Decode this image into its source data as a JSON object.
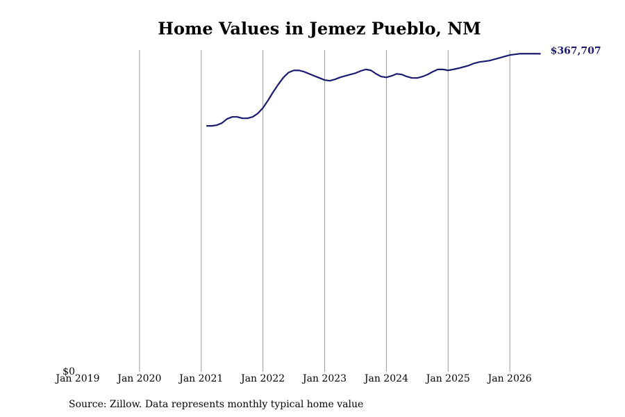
{
  "chart_data": {
    "type": "line",
    "title": "Home Values in Jemez Pueblo, NM",
    "source": "Source: Zillow. Data represents monthly typical home value",
    "x": [
      "2021-02",
      "2021-03",
      "2021-04",
      "2021-05",
      "2021-06",
      "2021-07",
      "2021-08",
      "2021-09",
      "2021-10",
      "2021-11",
      "2021-12",
      "2022-01",
      "2022-02",
      "2022-03",
      "2022-04",
      "2022-05",
      "2022-06",
      "2022-07",
      "2022-08",
      "2022-09",
      "2022-10",
      "2022-11",
      "2022-12",
      "2023-01",
      "2023-02",
      "2023-03",
      "2023-04",
      "2023-05",
      "2023-06",
      "2023-07",
      "2023-08",
      "2023-09",
      "2023-10",
      "2023-11",
      "2023-12",
      "2024-01",
      "2024-02",
      "2024-03",
      "2024-04",
      "2024-05",
      "2024-06",
      "2024-07",
      "2024-08",
      "2024-09",
      "2024-10",
      "2024-11",
      "2024-12",
      "2025-01",
      "2025-02",
      "2025-03",
      "2025-04",
      "2025-05",
      "2025-06",
      "2025-07",
      "2025-08",
      "2025-09",
      "2025-10",
      "2025-11",
      "2025-12",
      "2026-01",
      "2026-02",
      "2026-03",
      "2026-04",
      "2026-05",
      "2026-06",
      "2026-07"
    ],
    "series": [
      {
        "name": "Typical home value",
        "color": "#191970",
        "values": [
          284300,
          284300,
          285100,
          287500,
          292300,
          294700,
          294700,
          293100,
          293100,
          294700,
          298700,
          305100,
          313900,
          323600,
          332400,
          340400,
          346100,
          348500,
          348500,
          346900,
          344500,
          342100,
          339700,
          337300,
          336500,
          338100,
          340400,
          342100,
          343700,
          345300,
          347800,
          349600,
          348500,
          344500,
          341300,
          340400,
          342100,
          344500,
          343700,
          341300,
          339700,
          339700,
          341300,
          343700,
          346900,
          349600,
          349600,
          348500,
          349600,
          350900,
          352500,
          354100,
          356500,
          358100,
          358900,
          359700,
          361300,
          362900,
          364600,
          366200,
          367000,
          367800,
          367800,
          367800,
          367800,
          367707
        ],
        "value_labels": {
          "65": "$367,707"
        }
      }
    ],
    "xlim": [
      "2019-01",
      "2026-08"
    ],
    "xticks": [
      {
        "value": "2019-01",
        "label": "Jan 2019"
      },
      {
        "value": "2020-01",
        "label": "Jan 2020"
      },
      {
        "value": "2021-01",
        "label": "Jan 2021"
      },
      {
        "value": "2022-01",
        "label": "Jan 2022"
      },
      {
        "value": "2023-01",
        "label": "Jan 2023"
      },
      {
        "value": "2024-01",
        "label": "Jan 2024"
      },
      {
        "value": "2025-01",
        "label": "Jan 2025"
      },
      {
        "value": "2026-01",
        "label": "Jan 2026"
      }
    ],
    "ylim": [
      0,
      372000
    ],
    "yticks": [
      {
        "value": 0,
        "label": "$0"
      }
    ],
    "grid": true
  }
}
